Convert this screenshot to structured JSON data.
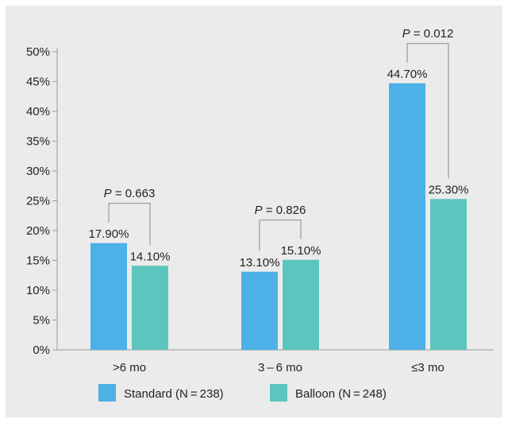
{
  "chart_data": {
    "type": "bar",
    "categories": [
      ">6 mo",
      "3 – 6 mo",
      "≤3 mo"
    ],
    "series": [
      {
        "name": "Standard (N = 238)",
        "color": "#4db0e6",
        "values": [
          17.9,
          13.1,
          44.7
        ],
        "labels": [
          "17.90%",
          "13.10%",
          "44.70%"
        ]
      },
      {
        "name": "Balloon (N = 248)",
        "color": "#5cc5bd",
        "values": [
          14.1,
          15.1,
          25.3
        ],
        "labels": [
          "14.10%",
          "15.10%",
          "25.30%"
        ]
      }
    ],
    "ylim": [
      0,
      50
    ],
    "yticks": [
      0,
      5,
      10,
      15,
      20,
      25,
      30,
      35,
      40,
      45,
      50
    ],
    "ytick_labels": [
      "0%",
      "5%",
      "10%",
      "15%",
      "20%",
      "25%",
      "30%",
      "35%",
      "40%",
      "45%",
      "50%"
    ],
    "annotations": [
      {
        "p_letter": "P",
        "p_rest": " = 0.663"
      },
      {
        "p_letter": "P",
        "p_rest": " = 0.826"
      },
      {
        "p_letter": "P",
        "p_rest": " = 0.012"
      }
    ],
    "legend_position": "bottom",
    "grid": false
  }
}
